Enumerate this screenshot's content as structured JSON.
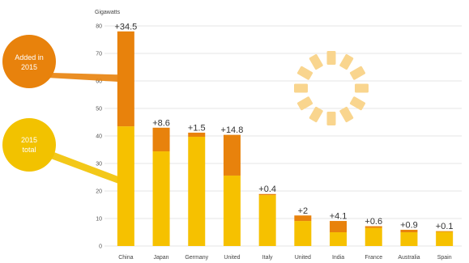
{
  "chart_data": {
    "type": "bar",
    "ylabel": "Gigawatts",
    "ylim": [
      0,
      80
    ],
    "yticks": [
      0,
      10,
      20,
      30,
      40,
      50,
      60,
      70,
      80
    ],
    "grid": true,
    "categories": [
      "China",
      "Japan",
      "Germany",
      "United",
      "Italy",
      "United",
      "India",
      "France",
      "Australia",
      "Spain"
    ],
    "series": [
      {
        "name": "2015 total",
        "values": [
          43.5,
          34.4,
          39.7,
          25.6,
          18.5,
          9.1,
          5.0,
          6.6,
          5.0,
          5.3
        ],
        "color": "#F6C100"
      },
      {
        "name": "Added in 2015",
        "values": [
          34.5,
          8.6,
          1.5,
          14.8,
          0.4,
          2.0,
          4.1,
          0.6,
          0.9,
          0.1
        ],
        "color": "#E8820C"
      }
    ],
    "data_labels": [
      "+34.5",
      "+8.6",
      "+1.5",
      "+14.8",
      "+0.4",
      "+2",
      "+4.1",
      "+0.6",
      "+0.9",
      "+0.1"
    ],
    "callouts": {
      "added": [
        "Added in",
        "2015"
      ],
      "total": [
        "2015",
        "total"
      ]
    },
    "colors": {
      "total": "#F6C100",
      "added": "#E8820C",
      "callout_added": "#E8820C",
      "callout_total": "#F2C200",
      "sun": "#F9D58E",
      "grid": "#e6e6e6"
    }
  }
}
